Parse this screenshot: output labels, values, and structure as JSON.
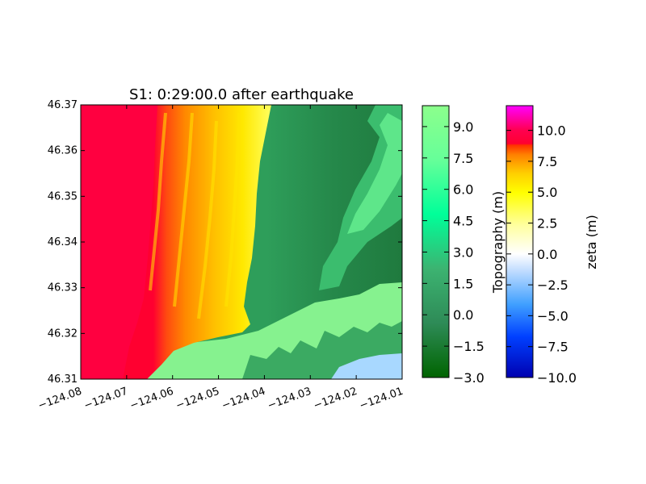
{
  "chart_data": {
    "type": "heatmap",
    "title": "S1: 0:29:00.0 after earthquake",
    "xlabel": "",
    "ylabel": "",
    "xlim": [
      -124.08,
      -124.01
    ],
    "ylim": [
      46.31,
      46.37
    ],
    "x_ticks": [
      -124.08,
      -124.07,
      -124.06,
      -124.05,
      -124.04,
      -124.03,
      -124.02,
      -124.01
    ],
    "x_tick_labels": [
      "−124.08",
      "−124.07",
      "−124.06",
      "−124.05",
      "−124.04",
      "−124.03",
      "−124.02",
      "−124.01"
    ],
    "y_ticks": [
      46.31,
      46.32,
      46.33,
      46.34,
      46.35,
      46.36,
      46.37
    ],
    "y_tick_labels": [
      "46.31",
      "46.32",
      "46.33",
      "46.34",
      "46.35",
      "46.36",
      "46.37"
    ],
    "grid": false,
    "colorbars": [
      {
        "label": "Topography (m)",
        "range": [
          -3.0,
          10.0
        ],
        "ticks": [
          -3.0,
          -1.5,
          0.0,
          1.5,
          3.0,
          4.5,
          6.0,
          7.5,
          9.0
        ],
        "tick_labels": [
          "−3.0",
          "−1.5",
          "0.0",
          "1.5",
          "3.0",
          "4.5",
          "6.0",
          "7.5",
          "9.0"
        ],
        "colors": [
          "#006400",
          "#3cb371",
          "#00ff99",
          "#7fff7f",
          "#8cff8c"
        ]
      },
      {
        "label": "zeta (m)",
        "range": [
          -10.0,
          12.0
        ],
        "ticks": [
          -10.0,
          -7.5,
          -5.0,
          -2.5,
          0.0,
          2.5,
          5.0,
          7.5,
          10.0
        ],
        "tick_labels": [
          "−10.0",
          "−7.5",
          "−5.0",
          "−2.5",
          "0.0",
          "2.5",
          "5.0",
          "7.5",
          "10.0"
        ],
        "colors": [
          "#0000b0",
          "#0050ff",
          "#40a0ff",
          "#b0d0ff",
          "#ffffff",
          "#ffff00",
          "#ffd000",
          "#ff8000",
          "#ff0030",
          "#ff00ff"
        ]
      }
    ],
    "fields": {
      "zeta_region": {
        "lon_range": [
          -124.08,
          -124.045
        ],
        "value_range": [
          2.5,
          9.0
        ]
      },
      "topography_region": {
        "lon_range": [
          -124.045,
          -124.01
        ],
        "value_range": [
          -2.0,
          9.0
        ]
      }
    }
  }
}
